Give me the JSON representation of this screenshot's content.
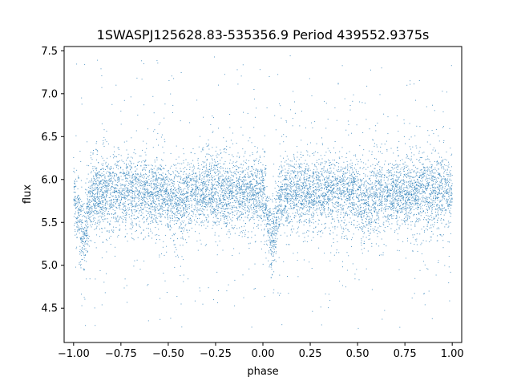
{
  "chart_data": {
    "type": "scatter",
    "title": "1SWASPJ125628.83-535356.9 Period 439552.9375s",
    "xlabel": "phase",
    "ylabel": "flux",
    "xlim": [
      -1.05,
      1.05
    ],
    "ylim": [
      4.1,
      7.55
    ],
    "xticks": [
      -1.0,
      -0.75,
      -0.5,
      -0.25,
      0.0,
      0.25,
      0.5,
      0.75,
      1.0
    ],
    "xtick_labels": [
      "−1.00",
      "−0.75",
      "−0.50",
      "−0.25",
      "0.00",
      "0.25",
      "0.50",
      "0.75",
      "1.00"
    ],
    "yticks": [
      4.5,
      5.0,
      5.5,
      6.0,
      6.5,
      7.0,
      7.5
    ],
    "ytick_labels": [
      "4.5",
      "5.0",
      "5.5",
      "6.0",
      "6.5",
      "7.0",
      "7.5"
    ],
    "marker_color": "#1f77b4",
    "grid": false,
    "legend": "none",
    "series": [
      {
        "phase_range": [
          -1.0,
          1.0
        ],
        "baseline_flux": 5.85,
        "typical_scatter": 0.2,
        "primary_eclipse": {
          "phase": [
            -0.95,
            0.05
          ],
          "min_flux": 5.3
        },
        "secondary_dip": {
          "phase": [
            -0.45,
            0.55
          ],
          "min_flux": 5.72
        },
        "outlier_flux_range": [
          4.25,
          7.45
        ],
        "x": [
          -1.0,
          -0.98,
          -0.95,
          -0.92,
          -0.9,
          -0.85,
          -0.75,
          -0.6,
          -0.5,
          -0.45,
          -0.4,
          -0.3,
          -0.2,
          -0.1,
          0.0,
          0.02,
          0.05,
          0.08,
          0.1,
          0.15,
          0.25,
          0.4,
          0.5,
          0.55,
          0.6,
          0.7,
          0.8,
          0.9,
          1.0
        ],
        "y": [
          5.65,
          5.5,
          5.3,
          5.45,
          5.65,
          5.85,
          5.9,
          5.85,
          5.8,
          5.72,
          5.8,
          5.88,
          5.9,
          5.88,
          5.65,
          5.5,
          5.3,
          5.45,
          5.65,
          5.85,
          5.9,
          5.85,
          5.8,
          5.72,
          5.8,
          5.88,
          5.9,
          5.88,
          5.65
        ]
      }
    ]
  }
}
